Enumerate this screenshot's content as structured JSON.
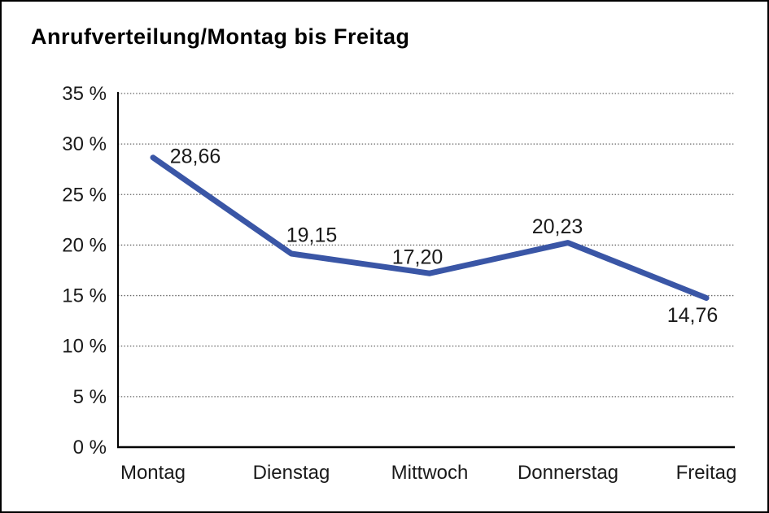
{
  "chart_data": {
    "type": "line",
    "title": "Anrufverteilung/Montag bis Freitag",
    "categories": [
      "Montag",
      "Dienstag",
      "Mittwoch",
      "Donnerstag",
      "Freitag"
    ],
    "values": [
      28.66,
      19.15,
      17.2,
      20.23,
      14.76
    ],
    "value_labels": [
      "28,66",
      "19,15",
      "17,20",
      "20,23",
      "14,76"
    ],
    "y_ticks": [
      "0 %",
      "5 %",
      "10 %",
      "15 %",
      "20 %",
      "25 %",
      "30 %",
      "35 %"
    ],
    "y_tick_values": [
      0,
      5,
      10,
      15,
      20,
      25,
      30,
      35
    ],
    "ylim": [
      0,
      35
    ],
    "xlabel": "",
    "ylabel": "",
    "legend": "none",
    "grid": "horizontal-dotted",
    "line_color": "#3A56A6",
    "axis_color": "#000000",
    "grid_color": "#666666",
    "text_color": "#1a1a1a"
  }
}
